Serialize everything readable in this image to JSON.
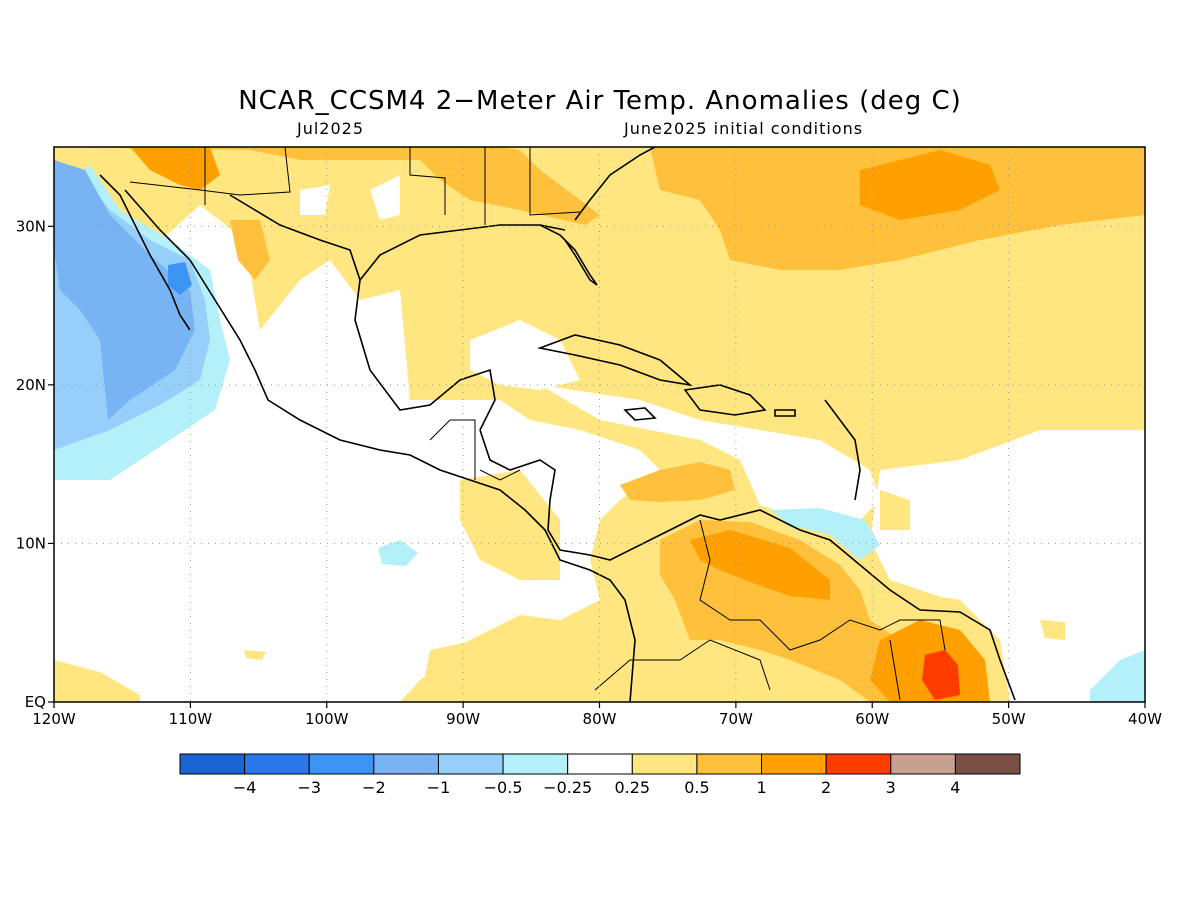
{
  "title": "NCAR_CCSM4 2−Meter Air Temp. Anomalies (deg C)",
  "subtitle_left": "Jul2025",
  "subtitle_right": "June2025 initial conditions",
  "map": {
    "lon_range": [
      -120,
      -40
    ],
    "lat_range": [
      0,
      35
    ],
    "x_ticks": [
      {
        "lon": -120,
        "label": "120W"
      },
      {
        "lon": -110,
        "label": "110W"
      },
      {
        "lon": -100,
        "label": "100W"
      },
      {
        "lon": -90,
        "label": "90W"
      },
      {
        "lon": -80,
        "label": "80W"
      },
      {
        "lon": -70,
        "label": "70W"
      },
      {
        "lon": -60,
        "label": "60W"
      },
      {
        "lon": -50,
        "label": "50W"
      },
      {
        "lon": -40,
        "label": "40W"
      }
    ],
    "y_ticks": [
      {
        "lat": 0,
        "label": "EQ"
      },
      {
        "lat": 10,
        "label": "10N"
      },
      {
        "lat": 20,
        "label": "20N"
      },
      {
        "lat": 30,
        "label": "30N"
      }
    ],
    "grid": "dotted"
  },
  "colorbar": {
    "colors": [
      "#1a64d2",
      "#2a78ea",
      "#3c94f2",
      "#78b4f4",
      "#96d0fa",
      "#b4f0fa",
      "#ffffff",
      "#ffe680",
      "#ffc03c",
      "#ffa000",
      "#ff3c00",
      "#c8a090",
      "#7a5046"
    ],
    "labels": [
      "−4",
      "−3",
      "−2",
      "−1",
      "−0.5",
      "−0.25",
      "0.25",
      "0.5",
      "1",
      "2",
      "3",
      "4"
    ]
  }
}
